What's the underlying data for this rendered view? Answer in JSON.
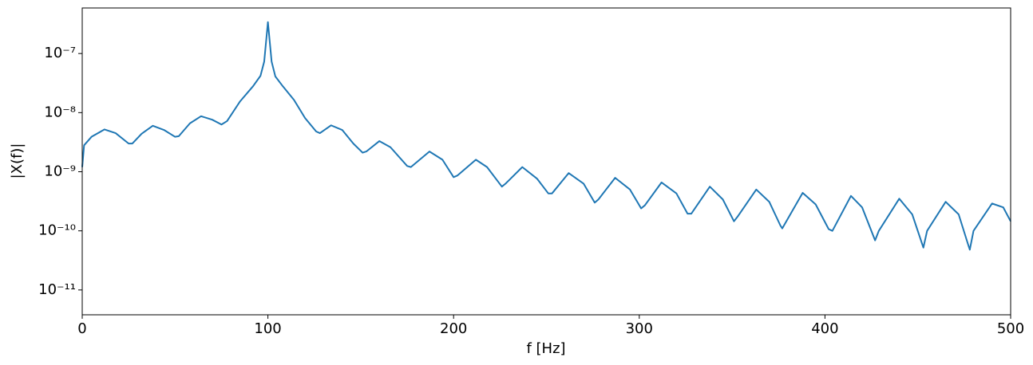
{
  "chart_data": {
    "type": "line",
    "xlabel": "f [Hz]",
    "ylabel": "|X(f)|",
    "color": "#1f77b4",
    "ylog": true,
    "grid": false,
    "x": [
      0,
      1,
      5,
      12,
      18,
      25,
      27,
      32,
      38,
      44,
      50,
      52,
      58,
      64,
      70,
      75,
      78,
      85,
      92,
      96,
      98,
      100,
      102,
      104,
      108,
      114,
      120,
      126,
      128,
      134,
      140,
      146,
      151,
      153,
      160,
      166,
      175,
      177,
      187,
      194,
      200,
      202,
      212,
      218,
      226,
      228,
      237,
      245,
      251,
      253,
      262,
      270,
      276,
      278,
      287,
      295,
      301,
      303,
      312,
      320,
      326,
      328,
      338,
      345,
      351,
      353,
      363,
      370,
      376,
      377,
      388,
      395,
      402,
      404,
      414,
      420,
      427,
      429,
      440,
      447,
      453,
      455,
      465,
      472,
      477,
      478,
      480,
      490,
      496,
      500
    ],
    "values": [
      1.2e-09,
      2.8e-09,
      3.9e-09,
      5.2e-09,
      4.5e-09,
      3e-09,
      3e-09,
      4.4e-09,
      6e-09,
      5.1e-09,
      3.9e-09,
      4e-09,
      6.6e-09,
      8.7e-09,
      7.6e-09,
      6.3e-09,
      7.2e-09,
      1.55e-08,
      2.8e-08,
      4.2e-08,
      7.3e-08,
      3.4e-07,
      7.3e-08,
      4.1e-08,
      2.8e-08,
      1.65e-08,
      8.1e-09,
      4.8e-09,
      4.5e-09,
      6.1e-09,
      5.1e-09,
      3e-09,
      2.1e-09,
      2.2e-09,
      3.3e-09,
      2.6e-09,
      1.25e-09,
      1.2e-09,
      2.2e-09,
      1.6e-09,
      8.1e-10,
      8.6e-10,
      1.6e-09,
      1.2e-09,
      5.6e-10,
      6.3e-10,
      1.2e-09,
      7.6e-10,
      4.3e-10,
      4.3e-10,
      9.5e-10,
      6.3e-10,
      3e-10,
      3.4e-10,
      7.9e-10,
      5e-10,
      2.4e-10,
      2.7e-10,
      6.6e-10,
      4.3e-10,
      1.95e-10,
      1.95e-10,
      5.6e-10,
      3.4e-10,
      1.45e-10,
      1.75e-10,
      5e-10,
      3.1e-10,
      1.23e-10,
      1.1e-10,
      4.4e-10,
      2.8e-10,
      1.07e-10,
      1e-10,
      3.9e-10,
      2.5e-10,
      6.9e-11,
      1e-10,
      3.5e-10,
      1.9e-10,
      5.2e-11,
      1e-10,
      3.1e-10,
      1.9e-10,
      6e-11,
      4.8e-11,
      1e-10,
      2.9e-10,
      2.5e-10,
      1.45e-10
    ],
    "xlim": [
      0,
      500
    ],
    "xticks": [
      0,
      100,
      200,
      300,
      400,
      500
    ],
    "ylim": [
      3.8e-12,
      5.9e-07
    ],
    "yticks": [
      {
        "value": 1e-11,
        "label": "10⁻¹¹"
      },
      {
        "value": 1e-10,
        "label": "10⁻¹⁰"
      },
      {
        "value": 1e-09,
        "label": "10⁻⁹"
      },
      {
        "value": 1e-08,
        "label": "10⁻⁸"
      },
      {
        "value": 1e-07,
        "label": "10⁻⁷"
      }
    ]
  }
}
